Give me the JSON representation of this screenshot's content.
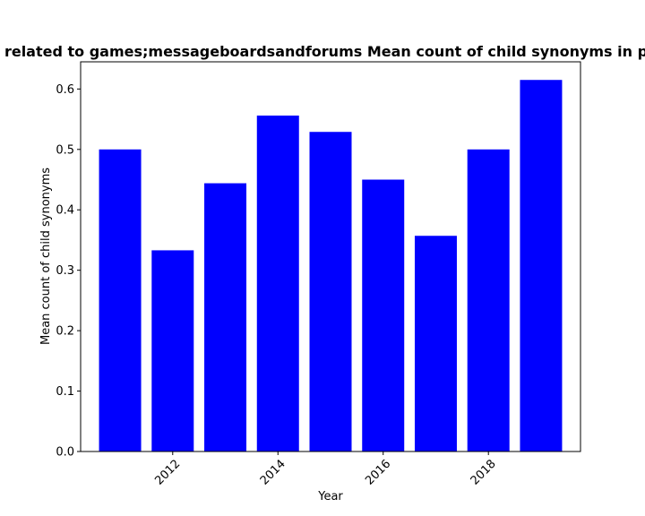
{
  "chart_data": {
    "type": "bar",
    "title": "related to games;messageboardsandforums Mean count of child synonyms in p",
    "xlabel": "Year",
    "ylabel": "Mean count of child synonyms",
    "x": [
      2011,
      2012,
      2013,
      2014,
      2015,
      2016,
      2017,
      2018,
      2019
    ],
    "values": [
      0.5,
      0.333,
      0.444,
      0.556,
      0.529,
      0.45,
      0.357,
      0.5,
      0.615
    ],
    "xlim": [
      2010.25,
      2019.75
    ],
    "ylim": [
      0,
      0.645
    ],
    "xticks": [
      2012,
      2014,
      2016,
      2018
    ],
    "yticks": [
      0.0,
      0.1,
      0.2,
      0.3,
      0.4,
      0.5,
      0.6
    ],
    "ytick_labels": [
      "0.0",
      "0.1",
      "0.2",
      "0.3",
      "0.4",
      "0.5",
      "0.6"
    ],
    "bar_width": 0.8,
    "bar_color": "#0000ff",
    "grid": false
  }
}
